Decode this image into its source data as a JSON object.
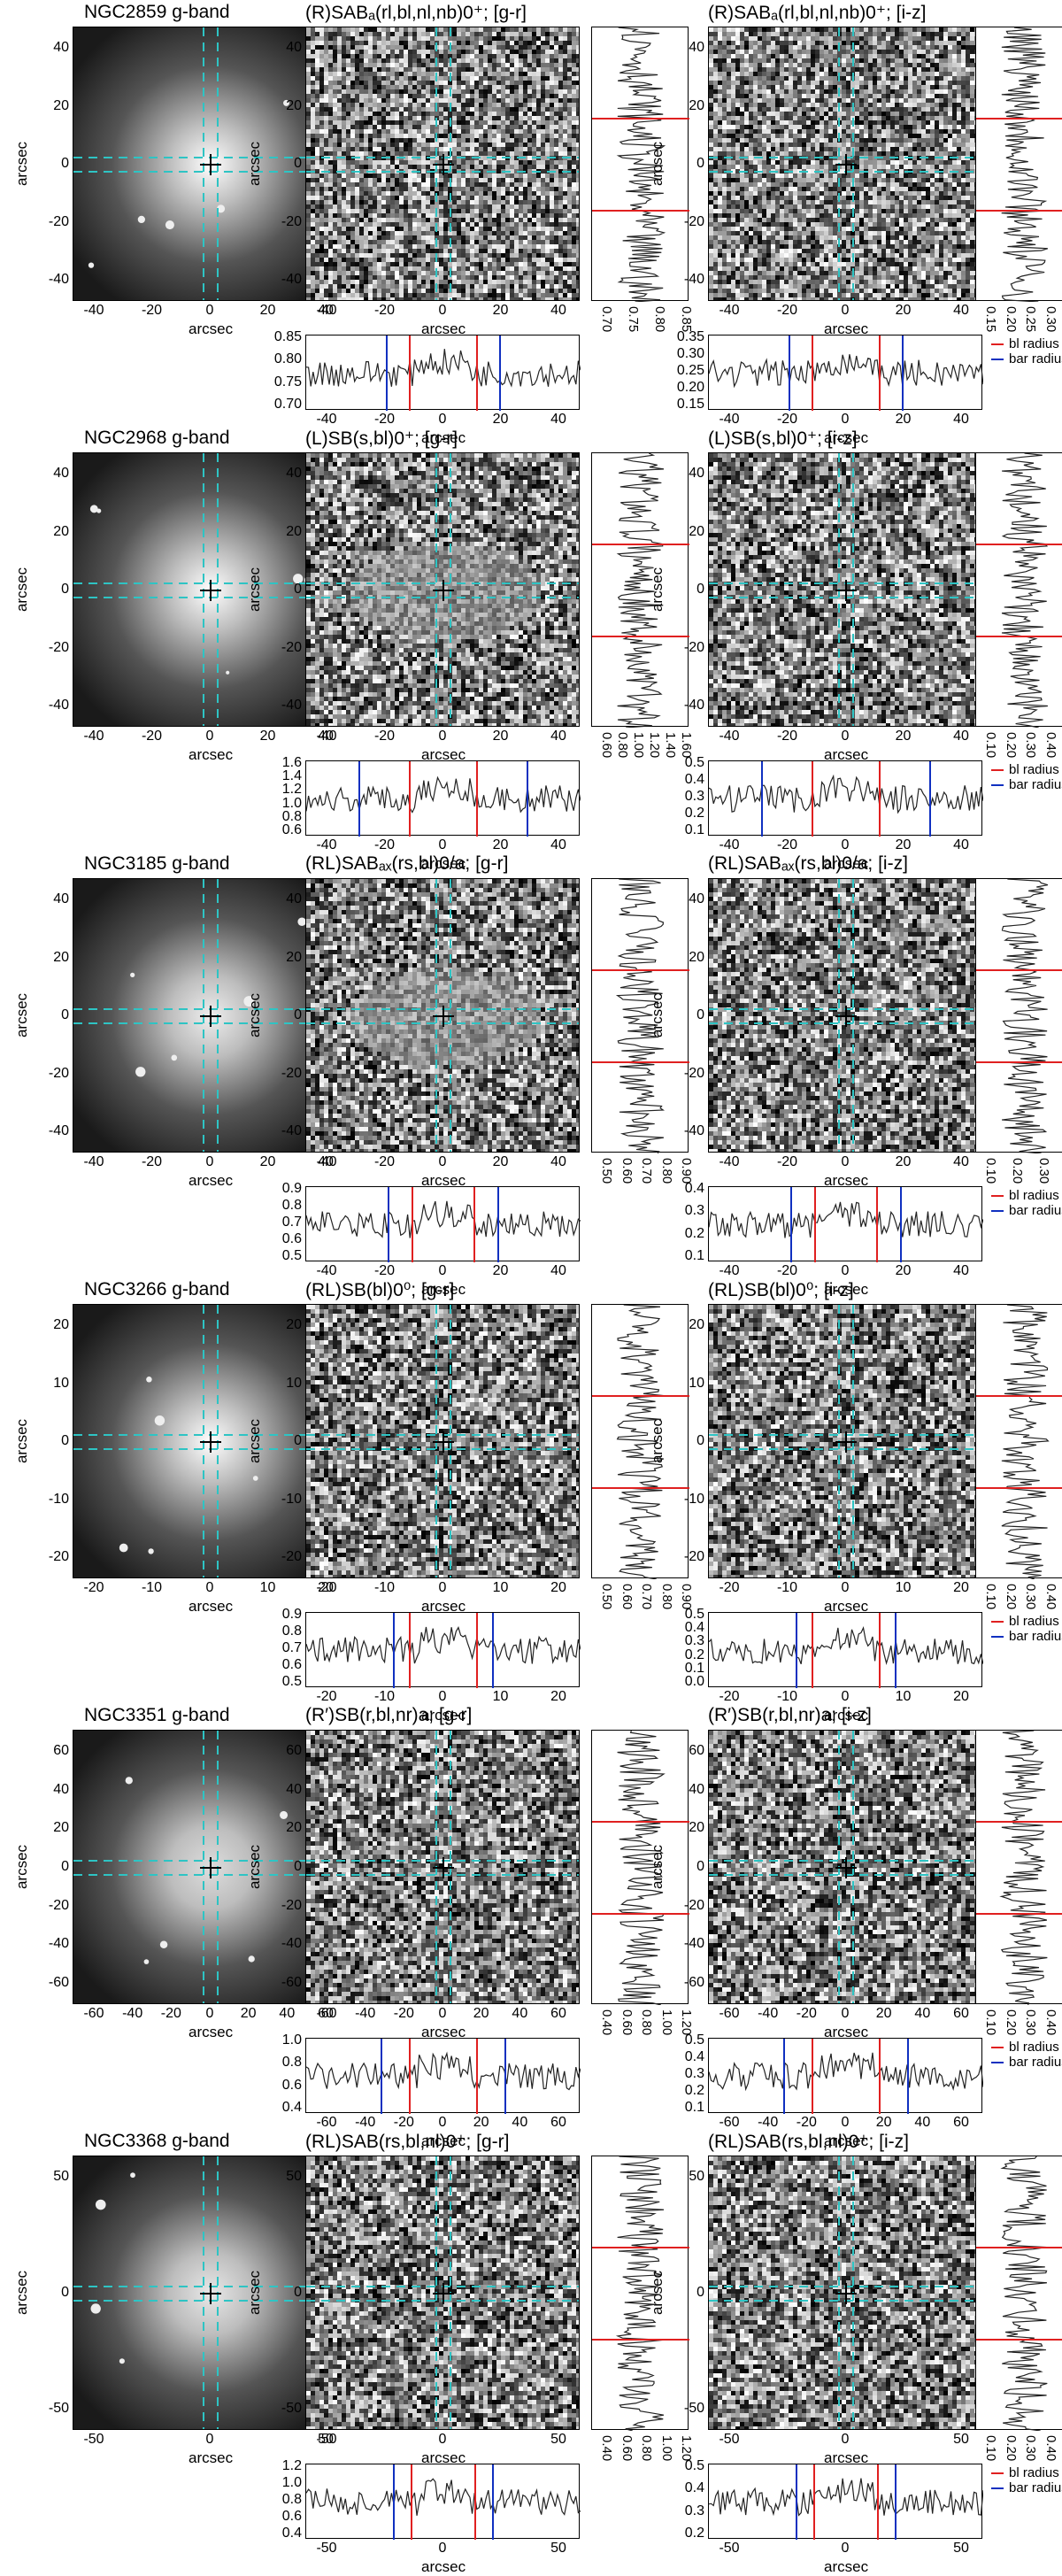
{
  "legend": {
    "bl_radius": "bl radius",
    "bar_radius": "bar radius",
    "bl_color": "#e02020",
    "bar_color": "#1030c0"
  },
  "axis_label": "arcsec",
  "rows": [
    {
      "galaxy": "NGC2859 g-band",
      "gr_title": "(R)SABₐ(rl,bl,nl,nb)0⁺; [g-r]",
      "iz_title": "(R)SABₐ(rl,bl,nl,nb)0⁺; [i-z]",
      "ticks": [
        "-40",
        "-20",
        "0",
        "20",
        "40"
      ],
      "yticks": [
        "40",
        "20",
        "0",
        "-20",
        "-40"
      ],
      "gr_h_ticks": [
        "0.85",
        "0.80",
        "0.75",
        "0.70"
      ],
      "gr_v_ticks": [
        "0.70",
        "0.75",
        "0.80",
        "0.85"
      ],
      "iz_h_ticks": [
        "0.35",
        "0.30",
        "0.25",
        "0.20",
        "0.15"
      ],
      "iz_v_ticks": [
        "0.15",
        "0.20",
        "0.25",
        "0.30",
        "0.35"
      ]
    },
    {
      "galaxy": "NGC2968 g-band",
      "gr_title": "(L)SB(s,bl)0⁺; [g-r]",
      "iz_title": "(L)SB(s,bl)0⁺; [i-z]",
      "ticks": [
        "-40",
        "-20",
        "0",
        "20",
        "40"
      ],
      "yticks": [
        "40",
        "20",
        "0",
        "-20",
        "-40"
      ],
      "gr_h_ticks": [
        "1.6",
        "1.4",
        "1.2",
        "1.0",
        "0.8",
        "0.6"
      ],
      "gr_v_ticks": [
        "0.60",
        "0.80",
        "1.00",
        "1.20",
        "1.40",
        "1.60"
      ],
      "iz_h_ticks": [
        "0.5",
        "0.4",
        "0.3",
        "0.2",
        "0.1"
      ],
      "iz_v_ticks": [
        "0.10",
        "0.20",
        "0.30",
        "0.40",
        "0.50"
      ]
    },
    {
      "galaxy": "NGC3185 g-band",
      "gr_title": "(RL)SABₐₓ(rs,bl)0/a; [g-r]",
      "iz_title": "(RL)SABₐₓ(rs,bl)0/a; [i-z]",
      "ticks": [
        "-40",
        "-20",
        "0",
        "20",
        "40"
      ],
      "yticks": [
        "40",
        "20",
        "0",
        "-20",
        "-40"
      ],
      "gr_h_ticks": [
        "0.9",
        "0.8",
        "0.7",
        "0.6",
        "0.5"
      ],
      "gr_v_ticks": [
        "0.50",
        "0.60",
        "0.70",
        "0.80",
        "0.90"
      ],
      "iz_h_ticks": [
        "0.4",
        "0.3",
        "0.2",
        "0.1"
      ],
      "iz_v_ticks": [
        "0.10",
        "0.20",
        "0.30",
        "0.40"
      ]
    },
    {
      "galaxy": "NGC3266 g-band",
      "gr_title": "(RL)SB(bl)0⁰; [g-r]",
      "iz_title": "(RL)SB(bl)0⁰; [i-z]",
      "ticks": [
        "-20",
        "-10",
        "0",
        "10",
        "20"
      ],
      "yticks": [
        "20",
        "10",
        "0",
        "-10",
        "-20"
      ],
      "gr_h_ticks": [
        "0.9",
        "0.8",
        "0.7",
        "0.6",
        "0.5"
      ],
      "gr_v_ticks": [
        "0.50",
        "0.60",
        "0.70",
        "0.80",
        "0.90"
      ],
      "iz_h_ticks": [
        "0.5",
        "0.4",
        "0.3",
        "0.2",
        "0.1",
        "0.0"
      ],
      "iz_v_ticks": [
        "0.10",
        "0.20",
        "0.30",
        "0.40",
        "0.50"
      ]
    },
    {
      "galaxy": "NGC3351 g-band",
      "gr_title": "(R′)SB(r,bl,nr)a; [g-r]",
      "iz_title": "(R′)SB(r,bl,nr)a; [i-z]",
      "ticks": [
        "-60",
        "-40",
        "-20",
        "0",
        "20",
        "40",
        "60"
      ],
      "yticks": [
        "60",
        "40",
        "20",
        "0",
        "-20",
        "-40",
        "-60"
      ],
      "gr_h_ticks": [
        "1.0",
        "0.8",
        "0.6",
        "0.4"
      ],
      "gr_v_ticks": [
        "0.40",
        "0.60",
        "0.80",
        "1.00",
        "1.20"
      ],
      "iz_h_ticks": [
        "0.5",
        "0.4",
        "0.3",
        "0.2",
        "0.1"
      ],
      "iz_v_ticks": [
        "0.10",
        "0.20",
        "0.30",
        "0.40",
        "0.50"
      ]
    },
    {
      "galaxy": "NGC3368 g-band",
      "gr_title": "(RL)SAB(rs,bl,nl)0⁺; [g-r]",
      "iz_title": "(RL)SAB(rs,bl,nl)0⁺; [i-z]",
      "ticks": [
        "-50",
        "0",
        "50"
      ],
      "yticks": [
        "50",
        "0",
        "-50"
      ],
      "gr_h_ticks": [
        "1.2",
        "1.0",
        "0.8",
        "0.6",
        "0.4"
      ],
      "gr_v_ticks": [
        "0.40",
        "0.60",
        "0.80",
        "1.00",
        "1.20"
      ],
      "iz_h_ticks": [
        "0.5",
        "0.4",
        "0.3",
        "0.2"
      ],
      "iz_v_ticks": [
        "0.10",
        "0.20",
        "0.30",
        "0.40",
        "0.50"
      ]
    }
  ]
}
